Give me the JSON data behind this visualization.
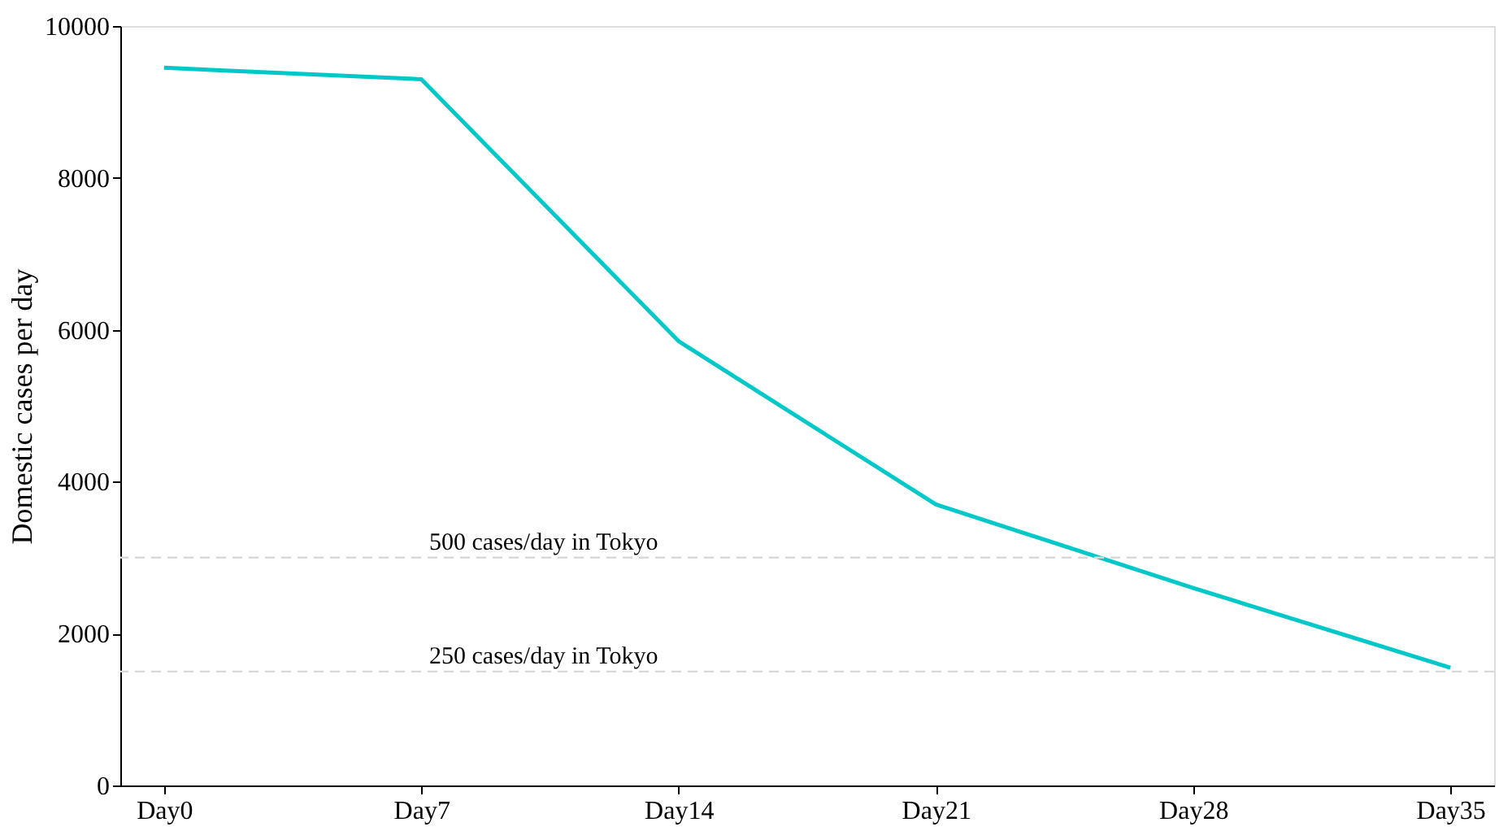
{
  "chart_data": {
    "type": "line",
    "ylabel": "Domestic cases per day",
    "categories": [
      "Day0",
      "Day7",
      "Day14",
      "Day21",
      "Day28",
      "Day35"
    ],
    "series": [
      {
        "color": "#00c8c8",
        "values": [
          9450,
          9300,
          5850,
          3700,
          2600,
          1550
        ]
      }
    ],
    "ylim": [
      0,
      10000
    ],
    "yticks": [
      0,
      2000,
      4000,
      6000,
      8000,
      10000
    ],
    "grid": false,
    "marker": "none",
    "line_style": "solid",
    "ref_lines": [
      {
        "axis": "y",
        "value": 3000,
        "label": "500 cases/day in Tokyo",
        "color": "#d9d9d9",
        "line_style": "dashed"
      },
      {
        "axis": "y",
        "value": 1500,
        "label": "250 cases/day in Tokyo",
        "color": "#d9d9d9",
        "line_style": "dashed"
      }
    ]
  }
}
